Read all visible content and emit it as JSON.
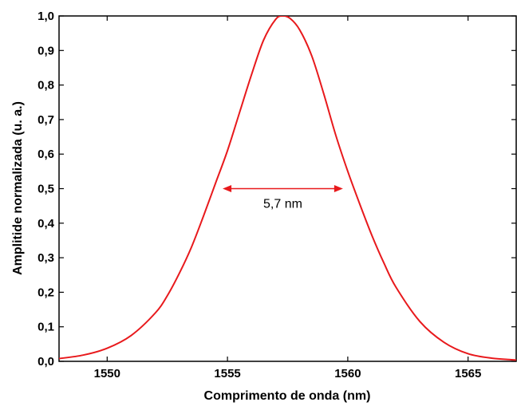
{
  "chart_data": {
    "type": "line",
    "xlabel": "Comprimento de onda (nm)",
    "ylabel": "Amplitide normalizada (u. a.)",
    "xlim": [
      1548,
      1567
    ],
    "ylim": [
      0,
      1.0
    ],
    "x_ticks": [
      1550,
      1555,
      1560,
      1565
    ],
    "x_tick_labels": [
      "1550",
      "1555",
      "1560",
      "1565"
    ],
    "y_ticks": [
      0,
      0.1,
      0.2,
      0.3,
      0.4,
      0.5,
      0.6,
      0.7,
      0.8,
      0.9,
      1.0
    ],
    "y_tick_labels": [
      "0,0",
      "0,1",
      "0,2",
      "0,3",
      "0,4",
      "0,5",
      "0,6",
      "0,7",
      "0,8",
      "0,9",
      "1,0"
    ],
    "grid": false,
    "series": [
      {
        "color": "#e8191c",
        "x": [
          1548.0,
          1549.0,
          1550.0,
          1551.0,
          1552.0,
          1552.5,
          1553.0,
          1553.5,
          1554.0,
          1554.5,
          1555.0,
          1555.5,
          1556.0,
          1556.5,
          1557.0,
          1557.3,
          1557.6,
          1558.0,
          1558.5,
          1559.0,
          1559.5,
          1560.0,
          1560.5,
          1561.0,
          1561.5,
          1562.0,
          1563.0,
          1564.0,
          1565.0,
          1566.0,
          1567.0
        ],
        "y": [
          0.008,
          0.018,
          0.038,
          0.075,
          0.14,
          0.19,
          0.255,
          0.33,
          0.42,
          0.515,
          0.61,
          0.72,
          0.83,
          0.93,
          0.99,
          1.0,
          0.993,
          0.96,
          0.885,
          0.775,
          0.655,
          0.55,
          0.455,
          0.365,
          0.285,
          0.215,
          0.115,
          0.055,
          0.022,
          0.009,
          0.004
        ]
      }
    ],
    "annotations": [
      {
        "text": "5,7 nm",
        "x_start": 1554.8,
        "x_end": 1559.8,
        "y": 0.5
      }
    ]
  }
}
